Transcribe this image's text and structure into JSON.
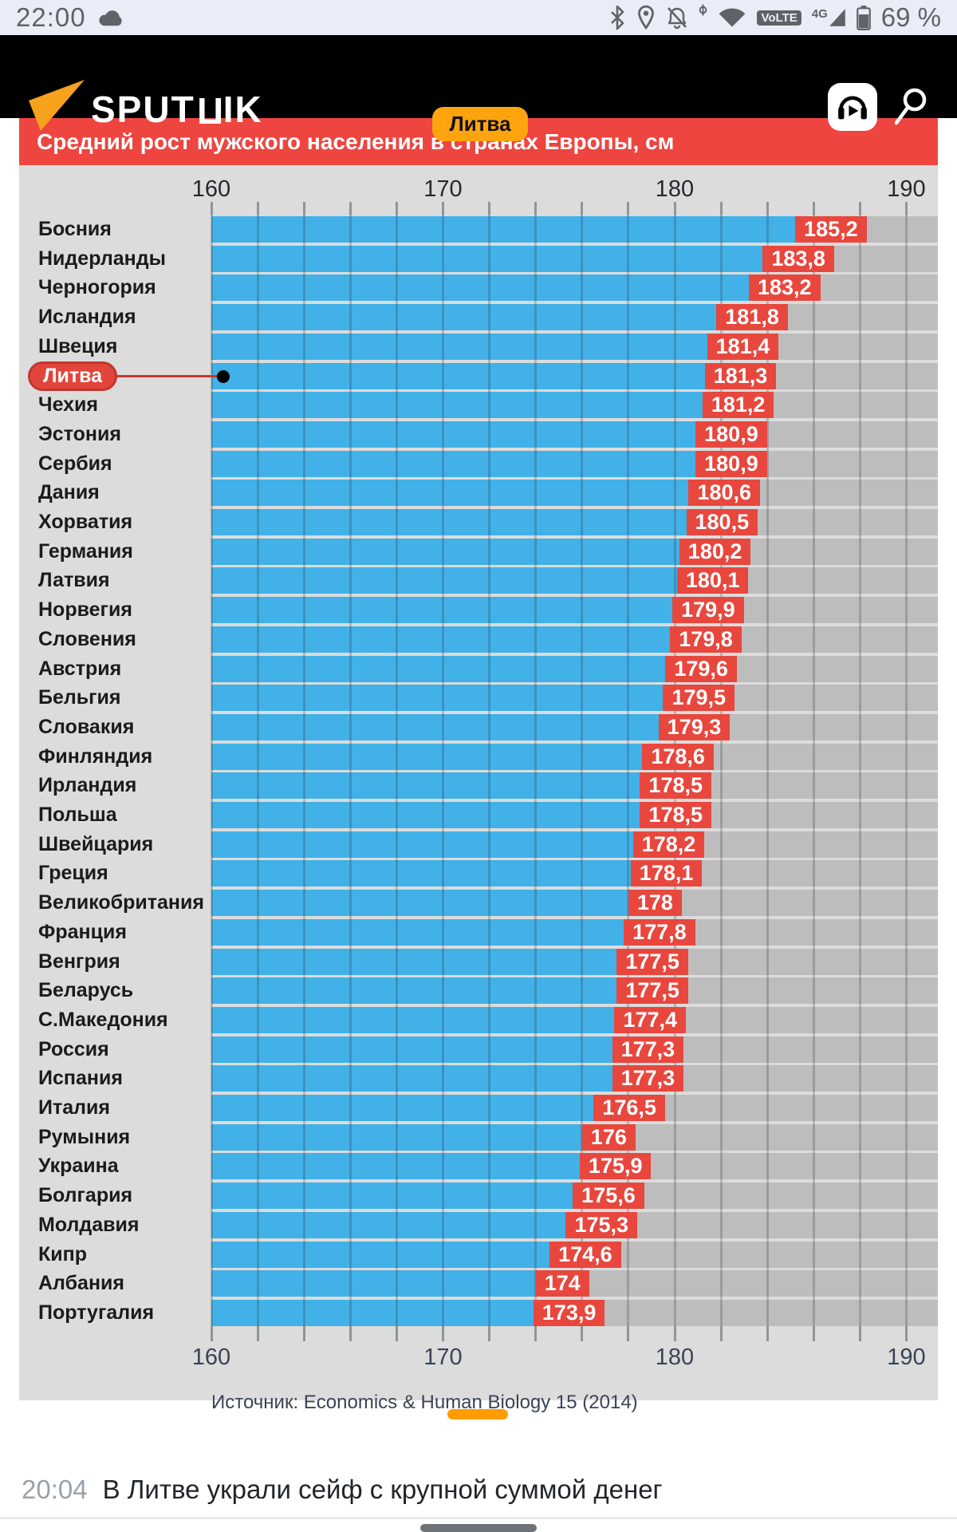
{
  "status_bar": {
    "time": "22:00",
    "battery_percent": "69 %",
    "volte_label": "VoLTE",
    "network_label": "4G"
  },
  "header": {
    "logo_text_1": "SPUT",
    "logo_text_flipped": "П",
    "logo_text_2": "IK"
  },
  "tooltip": {
    "label": "Литва"
  },
  "chart_data": {
    "type": "bar",
    "orientation": "horizontal",
    "title": "Средний рост мужского населения в странах Европы, см",
    "xlim": [
      160,
      190
    ],
    "x_major_ticks": [
      160,
      170,
      180,
      190
    ],
    "x_minor_tick_step": 2,
    "grid": true,
    "highlight_category": "Литва",
    "source": "Источник: Economics & Human Biology 15 (2014)",
    "categories": [
      "Босния",
      "Нидерланды",
      "Черногория",
      "Исландия",
      "Швеция",
      "Литва",
      "Чехия",
      "Эстония",
      "Сербия",
      "Дания",
      "Хорватия",
      "Германия",
      "Латвия",
      "Норвегия",
      "Словения",
      "Австрия",
      "Бельгия",
      "Словакия",
      "Финляндия",
      "Ирландия",
      "Польша",
      "Швейцария",
      "Греция",
      "Великобритания",
      "Франция",
      "Венгрия",
      "Беларусь",
      "С.Македония",
      "Россия",
      "Испания",
      "Италия",
      "Румыния",
      "Украина",
      "Болгария",
      "Молдавия",
      "Кипр",
      "Албания",
      "Португалия"
    ],
    "values": [
      185.2,
      183.8,
      183.2,
      181.8,
      181.4,
      181.3,
      181.2,
      180.9,
      180.9,
      180.6,
      180.5,
      180.2,
      180.1,
      179.9,
      179.8,
      179.6,
      179.5,
      179.3,
      178.6,
      178.5,
      178.5,
      178.2,
      178.1,
      178,
      177.8,
      177.5,
      177.5,
      177.4,
      177.3,
      177.3,
      176.5,
      176,
      175.9,
      175.6,
      175.3,
      174.6,
      174,
      173.9
    ],
    "display_values": [
      "185,2",
      "183,8",
      "183,2",
      "181,8",
      "181,4",
      "181,3",
      "181,2",
      "180,9",
      "180,9",
      "180,6",
      "180,5",
      "180,2",
      "180,1",
      "179,9",
      "179,8",
      "179,6",
      "179,5",
      "179,3",
      "178,6",
      "178,5",
      "178,5",
      "178,2",
      "178,1",
      "178",
      "177,8",
      "177,5",
      "177,5",
      "177,4",
      "177,3",
      "177,3",
      "176,5",
      "176",
      "175,9",
      "175,6",
      "175,3",
      "174,6",
      "174",
      "173,9"
    ],
    "bar_color": "#41b1e8",
    "value_badge_color": "#e8473e",
    "track_color": "#bdbdbd",
    "background_color": "#dcdcdc",
    "banner_color": "#ee4540",
    "tooltip_color": "#ffa40e",
    "highlight_pill_color": "#e2453c"
  },
  "footer": {
    "news_time": "20:04",
    "news_headline": "В Литве украли сейф с крупной суммой денег"
  }
}
